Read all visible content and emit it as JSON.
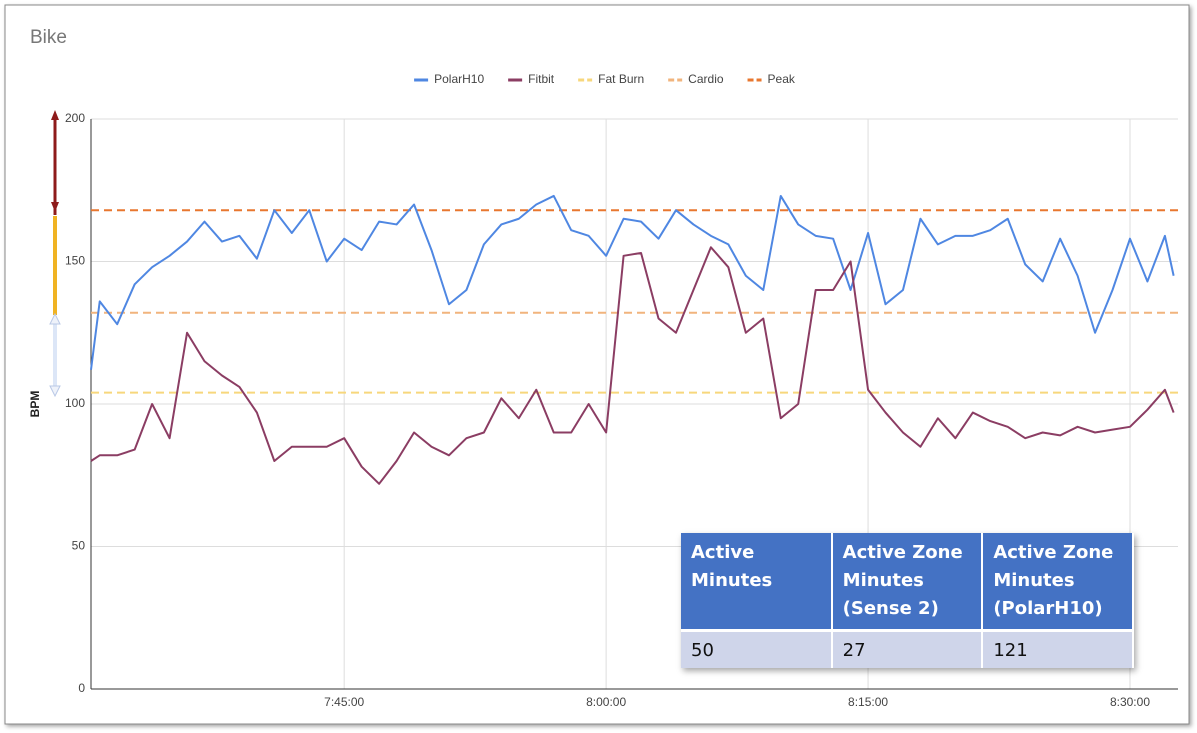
{
  "chart_data": {
    "type": "line",
    "title": "Bike",
    "ylabel": "BPM",
    "x": [
      "7:30:30",
      "7:31:00",
      "7:32:00",
      "7:33:00",
      "7:34:00",
      "7:35:00",
      "7:36:00",
      "7:37:00",
      "7:38:00",
      "7:39:00",
      "7:40:00",
      "7:41:00",
      "7:42:00",
      "7:43:00",
      "7:44:00",
      "7:45:00",
      "7:46:00",
      "7:47:00",
      "7:48:00",
      "7:49:00",
      "7:50:00",
      "7:51:00",
      "7:52:00",
      "7:53:00",
      "7:54:00",
      "7:55:00",
      "7:56:00",
      "7:57:00",
      "7:58:00",
      "7:59:00",
      "8:00:00",
      "8:01:00",
      "8:02:00",
      "8:03:00",
      "8:04:00",
      "8:05:00",
      "8:06:00",
      "8:07:00",
      "8:08:00",
      "8:09:00",
      "8:10:00",
      "8:11:00",
      "8:12:00",
      "8:13:00",
      "8:14:00",
      "8:15:00",
      "8:16:00",
      "8:17:00",
      "8:18:00",
      "8:19:00",
      "8:20:00",
      "8:21:00",
      "8:22:00",
      "8:23:00",
      "8:24:00",
      "8:25:00",
      "8:26:00",
      "8:27:00",
      "8:28:00",
      "8:29:00",
      "8:30:00",
      "8:31:00",
      "8:32:00",
      "8:32:30"
    ],
    "series": [
      {
        "name": "PolarH10",
        "color": "#4f87e2",
        "values": [
          112,
          136,
          128,
          142,
          148,
          152,
          157,
          164,
          157,
          159,
          151,
          168,
          160,
          168,
          150,
          158,
          154,
          164,
          163,
          170,
          154,
          135,
          140,
          156,
          163,
          165,
          170,
          173,
          161,
          159,
          152,
          165,
          164,
          158,
          168,
          163,
          159,
          156,
          145,
          140,
          173,
          163,
          159,
          158,
          140,
          160,
          135,
          140,
          165,
          156,
          159,
          159,
          161,
          165,
          149,
          143,
          158,
          145,
          125,
          140,
          158,
          143,
          159,
          145
        ]
      },
      {
        "name": "Fitbit",
        "color": "#8b3d63",
        "values": [
          80,
          82,
          82,
          84,
          100,
          88,
          125,
          115,
          110,
          106,
          97,
          80,
          85,
          85,
          85,
          88,
          78,
          72,
          80,
          90,
          85,
          82,
          88,
          90,
          102,
          95,
          105,
          90,
          90,
          100,
          90,
          152,
          153,
          130,
          125,
          140,
          155,
          148,
          125,
          130,
          95,
          100,
          140,
          140,
          150,
          105,
          97,
          90,
          85,
          95,
          88,
          97,
          94,
          92,
          88,
          90,
          89,
          92,
          90,
          91,
          92,
          98,
          105,
          97
        ]
      }
    ],
    "zones": [
      {
        "name": "Fat Burn",
        "color": "#f7d77c",
        "value": 104
      },
      {
        "name": "Cardio",
        "color": "#f1b47d",
        "value": 132
      },
      {
        "name": "Peak",
        "color": "#e8772f",
        "value": 168
      }
    ],
    "xlim": [
      "7:30:30",
      "8:32:45"
    ],
    "xticks": [
      "7:45:00",
      "8:00:00",
      "8:15:00",
      "8:30:00"
    ],
    "ylim": [
      0,
      200
    ],
    "yticks": [
      0,
      50,
      100,
      150,
      200
    ],
    "grid": true,
    "legend": "top"
  },
  "table": {
    "header": [
      "Active Minutes",
      "Active Zone Minutes (Sense 2)",
      "Active Zone Minutes (PolarH10)"
    ],
    "rows": [
      [
        "50",
        "27",
        "121"
      ]
    ]
  }
}
